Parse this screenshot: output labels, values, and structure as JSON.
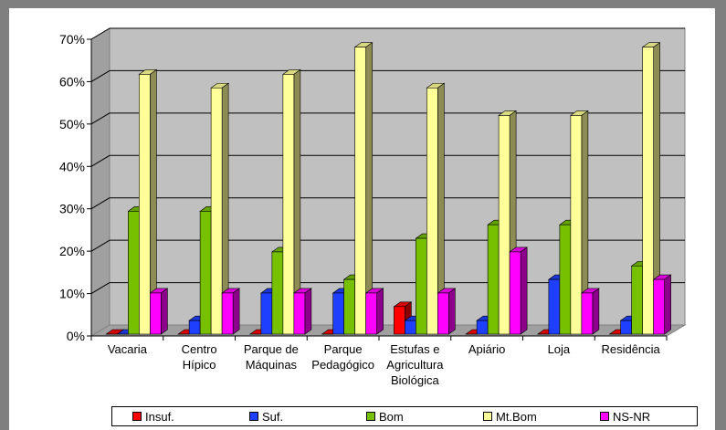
{
  "chart_data": {
    "type": "bar",
    "title": "",
    "xlabel": "",
    "ylabel": "",
    "ylim": [
      0,
      0.7
    ],
    "yticks": [
      "0%",
      "10%",
      "20%",
      "30%",
      "40%",
      "50%",
      "60%",
      "70%"
    ],
    "grid": true,
    "legend_position": "bottom",
    "categories": [
      [
        "Vacaria"
      ],
      [
        "Centro",
        "Hípico"
      ],
      [
        "Parque de",
        "Máquinas"
      ],
      [
        "Parque",
        "Pedagógico"
      ],
      [
        "Estufas e",
        "Agricultura",
        "Biológica"
      ],
      [
        "Apiário"
      ],
      [
        "Loja"
      ],
      [
        "Residência"
      ]
    ],
    "series": [
      {
        "name": "Insuf.",
        "color": "#ff0000",
        "values": [
          0,
          0,
          0,
          0,
          0.065,
          0,
          0,
          0
        ]
      },
      {
        "name": "Suf.",
        "color": "#1f3fff",
        "values": [
          0,
          0.032,
          0.097,
          0.097,
          0.032,
          0.032,
          0.129,
          0.032
        ]
      },
      {
        "name": "Bom",
        "color": "#77c000",
        "values": [
          0.29,
          0.29,
          0.194,
          0.129,
          0.226,
          0.258,
          0.258,
          0.161
        ]
      },
      {
        "name": "Mt.Bom",
        "color": "#ffff99",
        "values": [
          0.613,
          0.581,
          0.613,
          0.677,
          0.581,
          0.516,
          0.516,
          0.677
        ]
      },
      {
        "name": "NS-NR",
        "color": "#ff00ff",
        "values": [
          0.097,
          0.097,
          0.097,
          0.097,
          0.097,
          0.194,
          0.097,
          0.129
        ]
      }
    ]
  }
}
